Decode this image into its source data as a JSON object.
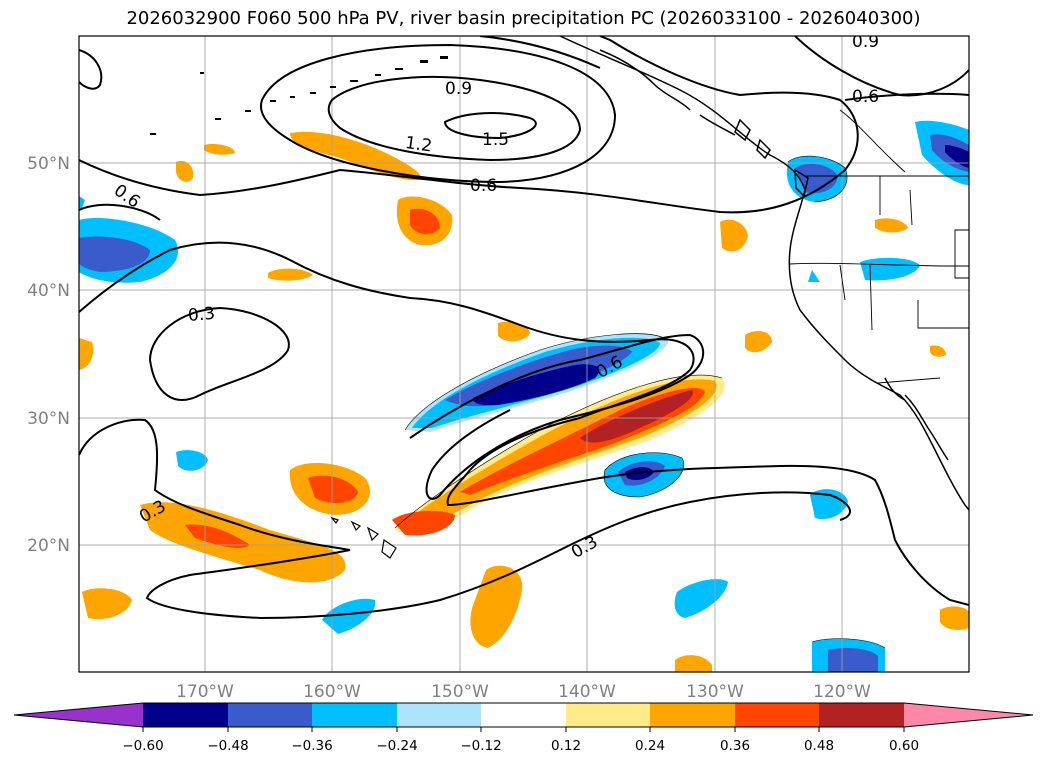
{
  "title": "2026032900 F060 500 hPa PV, river basin precipitation PC (2026033100 - 2026040300)",
  "map": {
    "lat_labels": [
      "50°N",
      "40°N",
      "30°N",
      "20°N"
    ],
    "lon_labels": [
      "170°W",
      "160°W",
      "150°W",
      "140°W",
      "130°W",
      "120°W"
    ],
    "contour_labels": [
      "0.9",
      "0.6",
      "0.6",
      "1.2",
      "1.5",
      "0.9",
      "0.6",
      "0.3",
      "0.6",
      "0.3",
      "0.3"
    ]
  },
  "colorbar": {
    "ticks": [
      "−0.60",
      "−0.48",
      "−0.36",
      "−0.24",
      "−0.12",
      "0.12",
      "0.24",
      "0.36",
      "0.48",
      "0.60"
    ],
    "colors": [
      "#9932cc",
      "#00008b",
      "#3a5bcc",
      "#00bfff",
      "#ade4fb",
      "#ffffff",
      "#ffeb8a",
      "#ffa500",
      "#ff4500",
      "#b22222",
      "#ff88aa"
    ]
  }
}
